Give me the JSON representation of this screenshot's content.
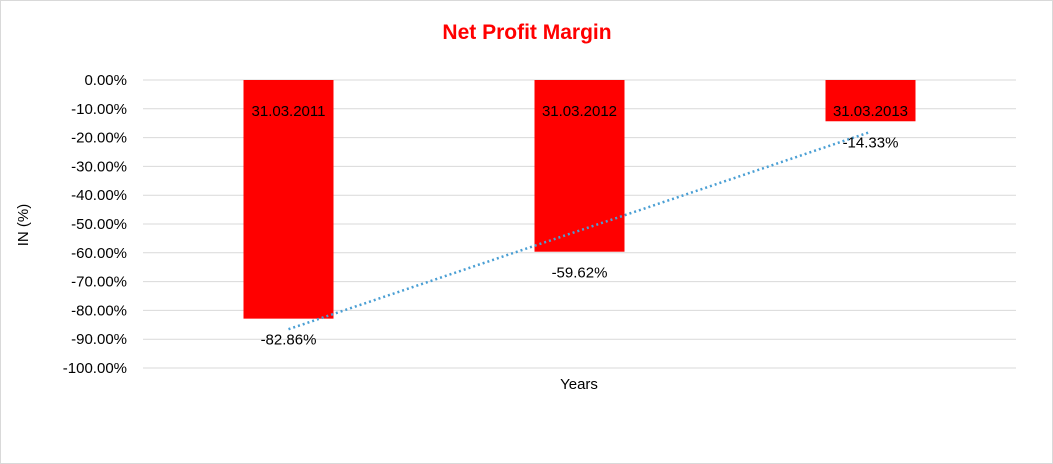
{
  "chart_data": {
    "type": "bar",
    "title": "Net Profit Margin",
    "xlabel": "Years",
    "ylabel": "IN (%)",
    "categories": [
      "31.03.2011",
      "31.03.2012",
      "31.03.2013"
    ],
    "series": [
      {
        "values": [
          -82.86,
          -59.62,
          -14.33
        ],
        "data_labels": [
          "-82.86%",
          "-59.62%",
          "-14.33%"
        ]
      }
    ],
    "ylim": [
      -100,
      0
    ],
    "ytick_step": 10,
    "yticks": [
      "0.00%",
      "-10.00%",
      "-20.00%",
      "-30.00%",
      "-40.00%",
      "-50.00%",
      "-60.00%",
      "-70.00%",
      "-80.00%",
      "-90.00%",
      "-100.00%"
    ],
    "trendline": {
      "type": "linear",
      "style": "dotted"
    },
    "grid": true,
    "legend": "none",
    "colors": {
      "bar": "#ff0000",
      "title": "#ff0000",
      "trendline": "#4a9fd4",
      "grid": "#d9d9d9"
    }
  }
}
